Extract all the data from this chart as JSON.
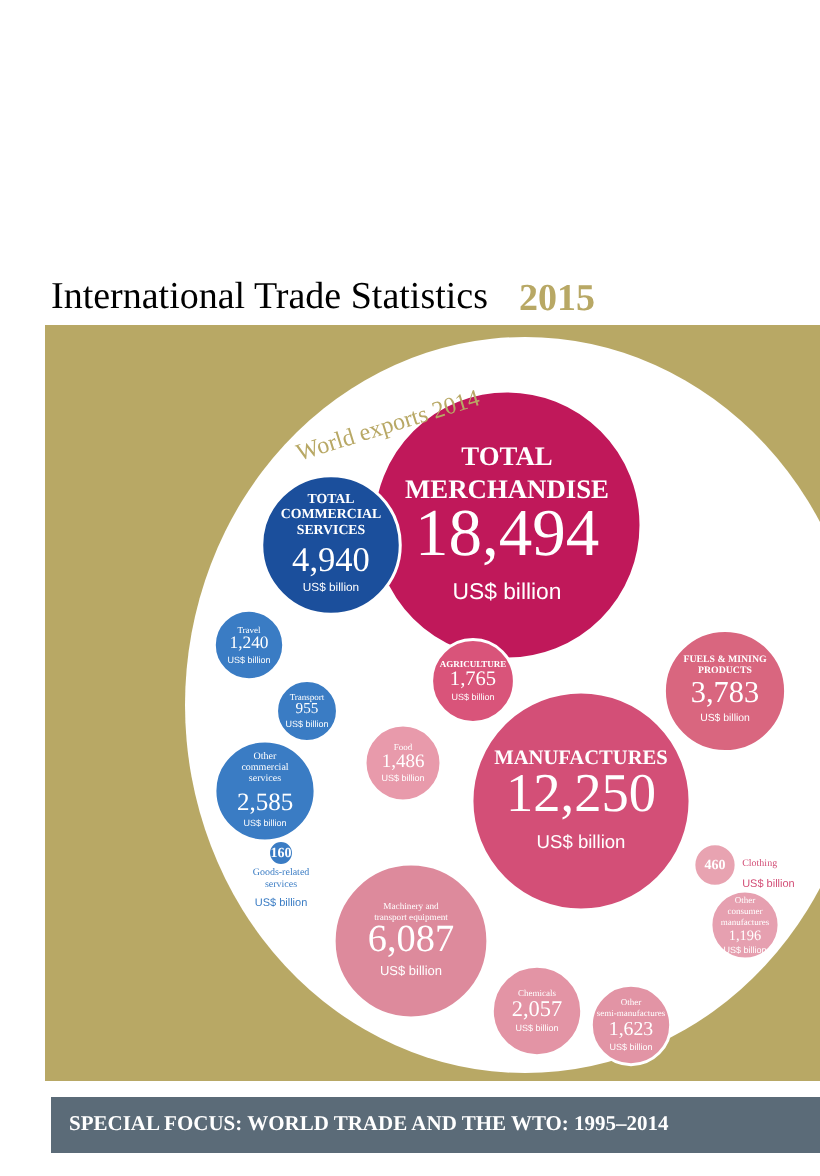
{
  "chart_data": {
    "type": "other",
    "title": "International Trade Statistics 2015",
    "subtitle": "World exports 2014",
    "categories": [
      "TOTAL\nMERCHANDISE",
      "TOTAL\nCOMMERCIAL\nSERVICES",
      "Travel",
      "Transport",
      "Other\ncommercial\nservices",
      "Goods-related\nservices",
      "AGRICULTURE",
      "Food",
      "FUELS & MINING\nPRODUCTS",
      "MANUFACTURES",
      "Machinery and\ntransport equipment",
      "Chemicals",
      "Other\nsemi-manufactures",
      "Other\nconsumer\nmanufactures",
      "Clothing"
    ],
    "values": [
      18494,
      4940,
      1240,
      955,
      2585,
      160,
      1765,
      1486,
      3783,
      12250,
      6087,
      2057,
      1623,
      1196,
      460
    ],
    "value_labels": [
      "18,494",
      "4,940",
      "1,240",
      "955",
      "2,585",
      "160",
      "1,765",
      "1,486",
      "3,783",
      "12,250",
      "6,087",
      "2,057",
      "1,623",
      "1,196",
      "460"
    ],
    "colors": [
      "#c0185a",
      "#1b4f9c",
      "#3a7cc4",
      "#3a7cc4",
      "#3a7cc4",
      "#3a7cc4",
      "#d9547a",
      "#e89aab",
      "#d9667f",
      "#d34f77",
      "#dd8a9c",
      "#e394a5",
      "#e294a5",
      "#e6a0b0",
      "#e8a3b1"
    ],
    "annotations": [
      "US$ billion",
      "US$ billion",
      "US$ billion",
      "US$ billion",
      "US$ billion",
      "US$ billion",
      "US$ billion",
      "US$ billion",
      "US$ billion",
      "US$ billion",
      "US$ billion",
      "US$ billion",
      "US$ billion",
      "US$ billion",
      "US$ billion",
      "SPECIAL FOCUS: WORLD TRADE AND THE WTO: 1995–2014"
    ]
  }
}
